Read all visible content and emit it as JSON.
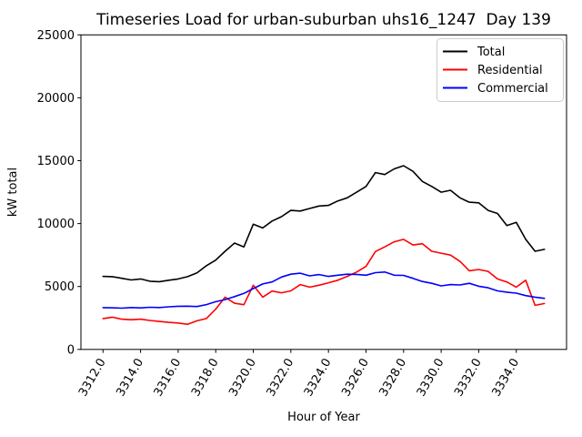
{
  "chart_data": {
    "type": "line",
    "title": "Timeseries Load for urban-suburban uhs16_1247  Day 139",
    "xlabel": "Hour of Year",
    "ylabel": "kW total",
    "xlim": [
      3310.825,
      3336.675
    ],
    "ylim": [
      0,
      25000
    ],
    "grid": false,
    "legend_position": "upper right",
    "x_tick_rotation": 60,
    "x_ticks": {
      "values": [
        3312,
        3314,
        3316,
        3318,
        3320,
        3322,
        3324,
        3326,
        3328,
        3330,
        3332,
        3334
      ],
      "labels": [
        "3312.0",
        "3314.0",
        "3316.0",
        "3318.0",
        "3320.0",
        "3322.0",
        "3324.0",
        "3326.0",
        "3328.0",
        "3330.0",
        "3332.0",
        "3334.0"
      ]
    },
    "y_ticks": {
      "values": [
        0,
        5000,
        10000,
        15000,
        20000,
        25000
      ],
      "labels": [
        "0",
        "5000",
        "10000",
        "15000",
        "20000",
        "25000"
      ]
    },
    "x_start": 3312.0,
    "x_step": 0.5,
    "series": [
      {
        "name": "Total",
        "color": "#000000",
        "values": [
          5800,
          5780,
          5650,
          5520,
          5600,
          5420,
          5380,
          5500,
          5600,
          5780,
          6080,
          6650,
          7100,
          7800,
          8450,
          8150,
          9950,
          9650,
          10200,
          10550,
          11050,
          11000,
          11200,
          11400,
          11450,
          11800,
          12050,
          12500,
          12950,
          14050,
          13900,
          14350,
          14600,
          14150,
          13350,
          12950,
          12500,
          12650,
          12050,
          11700,
          11650,
          11050,
          10800,
          9850,
          10100,
          8750,
          7800,
          7950
        ]
      },
      {
        "name": "Residential",
        "color": "#ff0000",
        "values": [
          2450,
          2560,
          2400,
          2360,
          2400,
          2300,
          2220,
          2150,
          2100,
          2000,
          2270,
          2450,
          3200,
          4150,
          3670,
          3550,
          5100,
          4150,
          4640,
          4500,
          4650,
          5150,
          4950,
          5100,
          5300,
          5500,
          5800,
          6150,
          6600,
          7780,
          8150,
          8550,
          8750,
          8300,
          8400,
          7800,
          7650,
          7500,
          7000,
          6250,
          6350,
          6200,
          5600,
          5360,
          4950,
          5500,
          3500,
          3650
        ]
      },
      {
        "name": "Commercial",
        "color": "#0000ff",
        "values": [
          3320,
          3310,
          3280,
          3330,
          3300,
          3350,
          3330,
          3390,
          3430,
          3440,
          3410,
          3560,
          3790,
          3960,
          4200,
          4450,
          4830,
          5200,
          5360,
          5750,
          5980,
          6060,
          5850,
          5950,
          5800,
          5900,
          5980,
          5960,
          5900,
          6100,
          6150,
          5900,
          5880,
          5650,
          5400,
          5250,
          5050,
          5150,
          5120,
          5250,
          5020,
          4900,
          4650,
          4550,
          4470,
          4280,
          4150,
          4060
        ]
      }
    ]
  }
}
